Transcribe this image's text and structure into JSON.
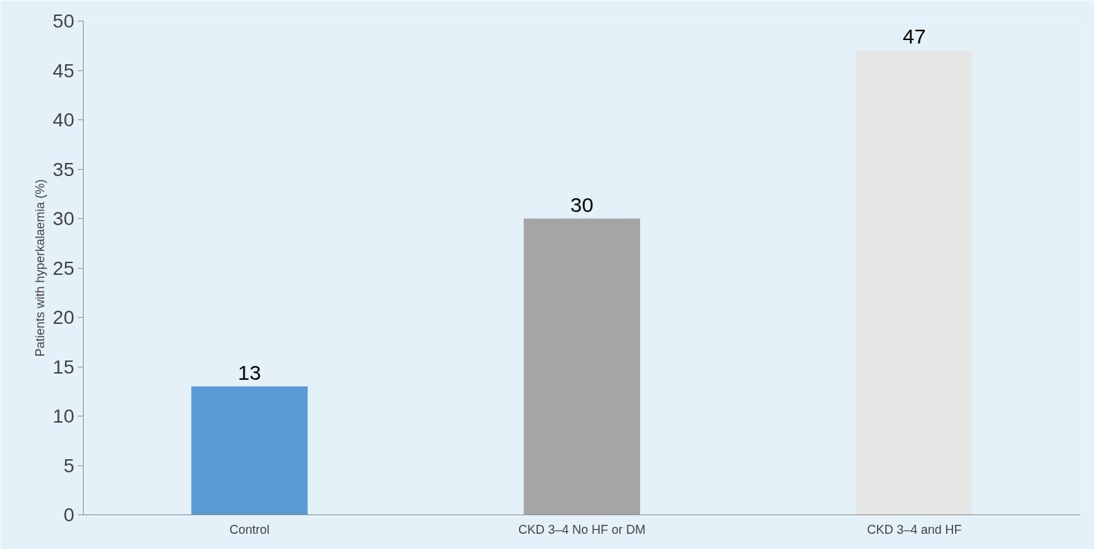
{
  "chart_data": {
    "type": "bar",
    "ylabel": "Patients with hyperkalaemia (%)",
    "categories": [
      "Control",
      "CKD 3–4 No HF or DM",
      "CKD 3–4 and HF"
    ],
    "values": [
      13,
      30,
      47
    ],
    "colors": [
      "#5b9bd5",
      "#a5a5a5",
      "#e6e6e6"
    ],
    "ylim": [
      0,
      50
    ],
    "yticks": [
      0,
      5,
      10,
      15,
      20,
      25,
      30,
      35,
      40,
      45,
      50
    ],
    "grid": false,
    "data_labels": true
  }
}
